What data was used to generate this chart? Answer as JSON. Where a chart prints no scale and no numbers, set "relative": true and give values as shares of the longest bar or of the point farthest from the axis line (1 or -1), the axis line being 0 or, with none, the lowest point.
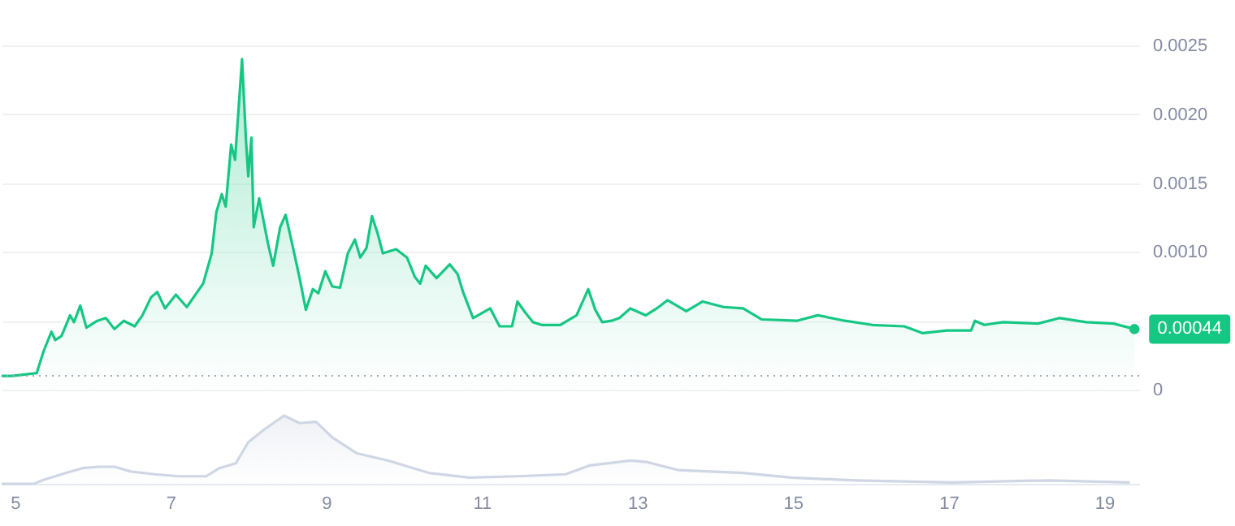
{
  "chart_data": [
    {
      "type": "area",
      "x": [
        4.83,
        4.97,
        5.28,
        5.37,
        5.47,
        5.52,
        5.6,
        5.71,
        5.76,
        5.84,
        5.92,
        6.06,
        6.17,
        6.28,
        6.4,
        6.54,
        6.64,
        6.75,
        6.83,
        6.93,
        7.07,
        7.21,
        7.42,
        7.53,
        7.59,
        7.66,
        7.71,
        7.78,
        7.83,
        7.92,
        7.97,
        8.0,
        8.04,
        8.07,
        8.14,
        8.25,
        8.32,
        8.41,
        8.48,
        8.56,
        8.66,
        8.74,
        8.83,
        8.9,
        8.99,
        9.08,
        9.18,
        9.28,
        9.37,
        9.44,
        9.52,
        9.59,
        9.66,
        9.73,
        9.9,
        10.04,
        10.14,
        10.21,
        10.28,
        10.42,
        10.59,
        10.69,
        10.76,
        10.89,
        11.11,
        11.23,
        11.39,
        11.46,
        11.56,
        11.66,
        11.77,
        12.01,
        12.22,
        12.37,
        12.46,
        12.55,
        12.67,
        12.77,
        12.91,
        13.11,
        13.25,
        13.39,
        13.63,
        13.84,
        14.11,
        14.36,
        14.6,
        15.05,
        15.32,
        15.67,
        16.02,
        16.43,
        16.67,
        16.98,
        17.29,
        17.34,
        17.46,
        17.7,
        18.15,
        18.43,
        18.77,
        19.12,
        19.39
      ],
      "series": [
        {
          "color": "#16c784",
          "values": [
            0.0001,
            0.0001,
            0.00012,
            0.00028,
            0.00042,
            0.00036,
            0.00039,
            0.00054,
            0.00049,
            0.00061,
            0.00045,
            0.0005,
            0.00052,
            0.00044,
            0.0005,
            0.00046,
            0.00054,
            0.00067,
            0.00071,
            0.00059,
            0.00069,
            0.0006,
            0.00077,
            0.00099,
            0.00129,
            0.00142,
            0.00133,
            0.00178,
            0.00167,
            0.0024,
            0.00182,
            0.00155,
            0.00183,
            0.00118,
            0.00139,
            0.00107,
            0.0009,
            0.00118,
            0.00127,
            0.00107,
            0.00081,
            0.00058,
            0.00073,
            0.0007,
            0.00086,
            0.00075,
            0.00074,
            0.00099,
            0.00109,
            0.00096,
            0.00103,
            0.00126,
            0.00114,
            0.00099,
            0.00102,
            0.00096,
            0.00082,
            0.00077,
            0.0009,
            0.00081,
            0.00091,
            0.00084,
            0.00071,
            0.00052,
            0.00059,
            0.00046,
            0.00046,
            0.00064,
            0.00056,
            0.00049,
            0.00047,
            0.00047,
            0.00054,
            0.00073,
            0.00058,
            0.00049,
            0.0005,
            0.00052,
            0.00059,
            0.00054,
            0.00059,
            0.00065,
            0.00057,
            0.00064,
            0.0006,
            0.00059,
            0.00051,
            0.0005,
            0.00054,
            0.0005,
            0.00047,
            0.00046,
            0.00041,
            0.00043,
            0.00043,
            0.0005,
            0.00047,
            0.00049,
            0.00048,
            0.00052,
            0.00049,
            0.00048,
            0.00044
          ]
        }
      ],
      "xlim": [
        4.83,
        19.45
      ],
      "xticks": [
        5,
        7,
        9,
        11,
        13,
        15,
        17,
        19
      ],
      "ylim": [
        0,
        0.0025
      ],
      "yticks": [
        0,
        {
          "value": 0.0005,
          "label": null
        },
        {
          "value": 0.001,
          "label": "0.0010"
        },
        {
          "value": 0.0015,
          "label": "0.0015"
        },
        {
          "value": 0.002,
          "label": "0.0020"
        },
        {
          "value": 0.0025,
          "label": "0.0025"
        }
      ],
      "grid": "y",
      "tick_labels": "y",
      "ref_lines": [
        {
          "axis": "y",
          "value": 0.0001,
          "line_style": "dotted",
          "color": "#a1a7bb"
        }
      ],
      "annotations": [
        {
          "text": "0.00044",
          "x": 19.39,
          "y": 0.00044
        }
      ]
    },
    {
      "type": "area",
      "relative": true,
      "x": [
        4.83,
        5.25,
        5.35,
        5.66,
        5.87,
        6.08,
        6.28,
        6.49,
        6.8,
        7.11,
        7.46,
        7.63,
        7.84,
        8.0,
        8.21,
        8.46,
        8.66,
        8.87,
        9.08,
        9.39,
        9.8,
        10.32,
        10.84,
        11.46,
        12.08,
        12.39,
        12.91,
        13.12,
        13.53,
        14.36,
        14.98,
        15.81,
        17.05,
        18.29,
        19.33
      ],
      "series": [
        {
          "color": "#cfd6e4",
          "values": [
            0,
            0,
            0.05,
            0.16,
            0.23,
            0.25,
            0.25,
            0.18,
            0.14,
            0.11,
            0.11,
            0.23,
            0.3,
            0.61,
            0.8,
            1,
            0.89,
            0.91,
            0.68,
            0.45,
            0.34,
            0.16,
            0.09,
            0.11,
            0.14,
            0.27,
            0.34,
            0.32,
            0.2,
            0.16,
            0.09,
            0.05,
            0.02,
            0.05,
            0.02
          ]
        }
      ],
      "xlim": [
        4.83,
        19.45
      ],
      "xticks": [
        5,
        7,
        9,
        11,
        13,
        15,
        17,
        19
      ],
      "tick_labels": "x"
    }
  ]
}
